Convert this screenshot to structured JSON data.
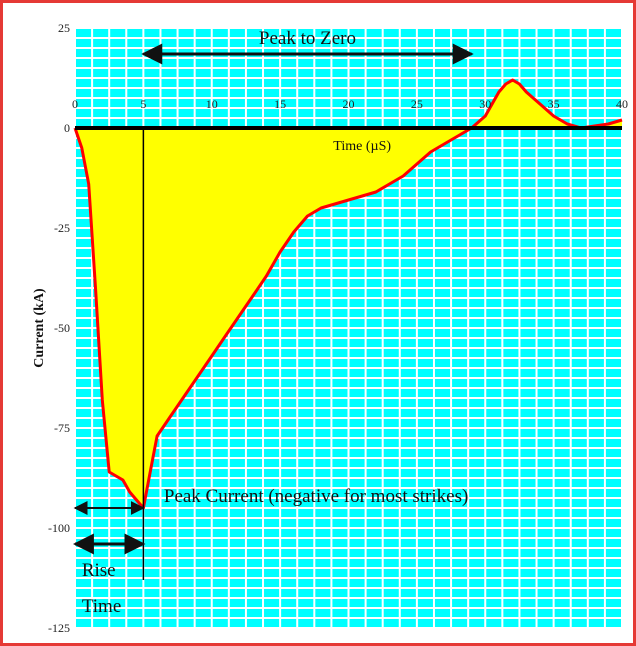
{
  "chart_data": {
    "type": "area",
    "xlabel": "Time (µS)",
    "ylabel": "Current (kA)",
    "x_ticks": [
      0,
      5,
      10,
      15,
      20,
      25,
      30,
      35,
      40
    ],
    "y_ticks": [
      25,
      0,
      -25,
      -50,
      -75,
      -100,
      -125
    ],
    "xlim": [
      0,
      40
    ],
    "ylim": [
      -125,
      25
    ],
    "grid": true,
    "series": [
      {
        "x": [
          0,
          0.5,
          1,
          1.5,
          2,
          2.5,
          3,
          3.5,
          4,
          4.5,
          5,
          5.5,
          6,
          7,
          8,
          9,
          10,
          11,
          12,
          13,
          14,
          15,
          16,
          17,
          18,
          19,
          20,
          21,
          22,
          23,
          24,
          25,
          26,
          27,
          28,
          29,
          30,
          30.5,
          31,
          31.5,
          32,
          32.5,
          33,
          34,
          35,
          36,
          37,
          38,
          39,
          40
        ],
        "y": [
          0,
          -5,
          -14,
          -40,
          -68,
          -86,
          -87,
          -88,
          -91,
          -93,
          -95,
          -86,
          -77,
          -72,
          -67,
          -62,
          -57,
          -52,
          -47,
          -42,
          -37,
          -31,
          -26,
          -22,
          -20,
          -19,
          -18,
          -17,
          -16,
          -14,
          -12,
          -9,
          -6,
          -4,
          -2,
          0,
          3,
          6,
          9,
          11,
          12,
          11,
          9,
          6,
          3,
          1,
          0,
          0.5,
          1,
          2
        ]
      }
    ],
    "annotations": {
      "peak_to_zero": "Peak to Zero",
      "peak_current": "Peak Current (negative for most strikes)",
      "rise": "Rise",
      "time": "Time"
    },
    "markers": {
      "peak_to_zero_span": [
        5,
        29
      ],
      "rise_span": [
        0,
        5
      ],
      "peak_value": -95,
      "peak_time": 5
    }
  },
  "colors": {
    "background": "#00ffff",
    "grid": "#ffffff",
    "fill": "#ffff00",
    "curve": "#ff0000",
    "frame": "#e53935",
    "axis": "#000000"
  }
}
